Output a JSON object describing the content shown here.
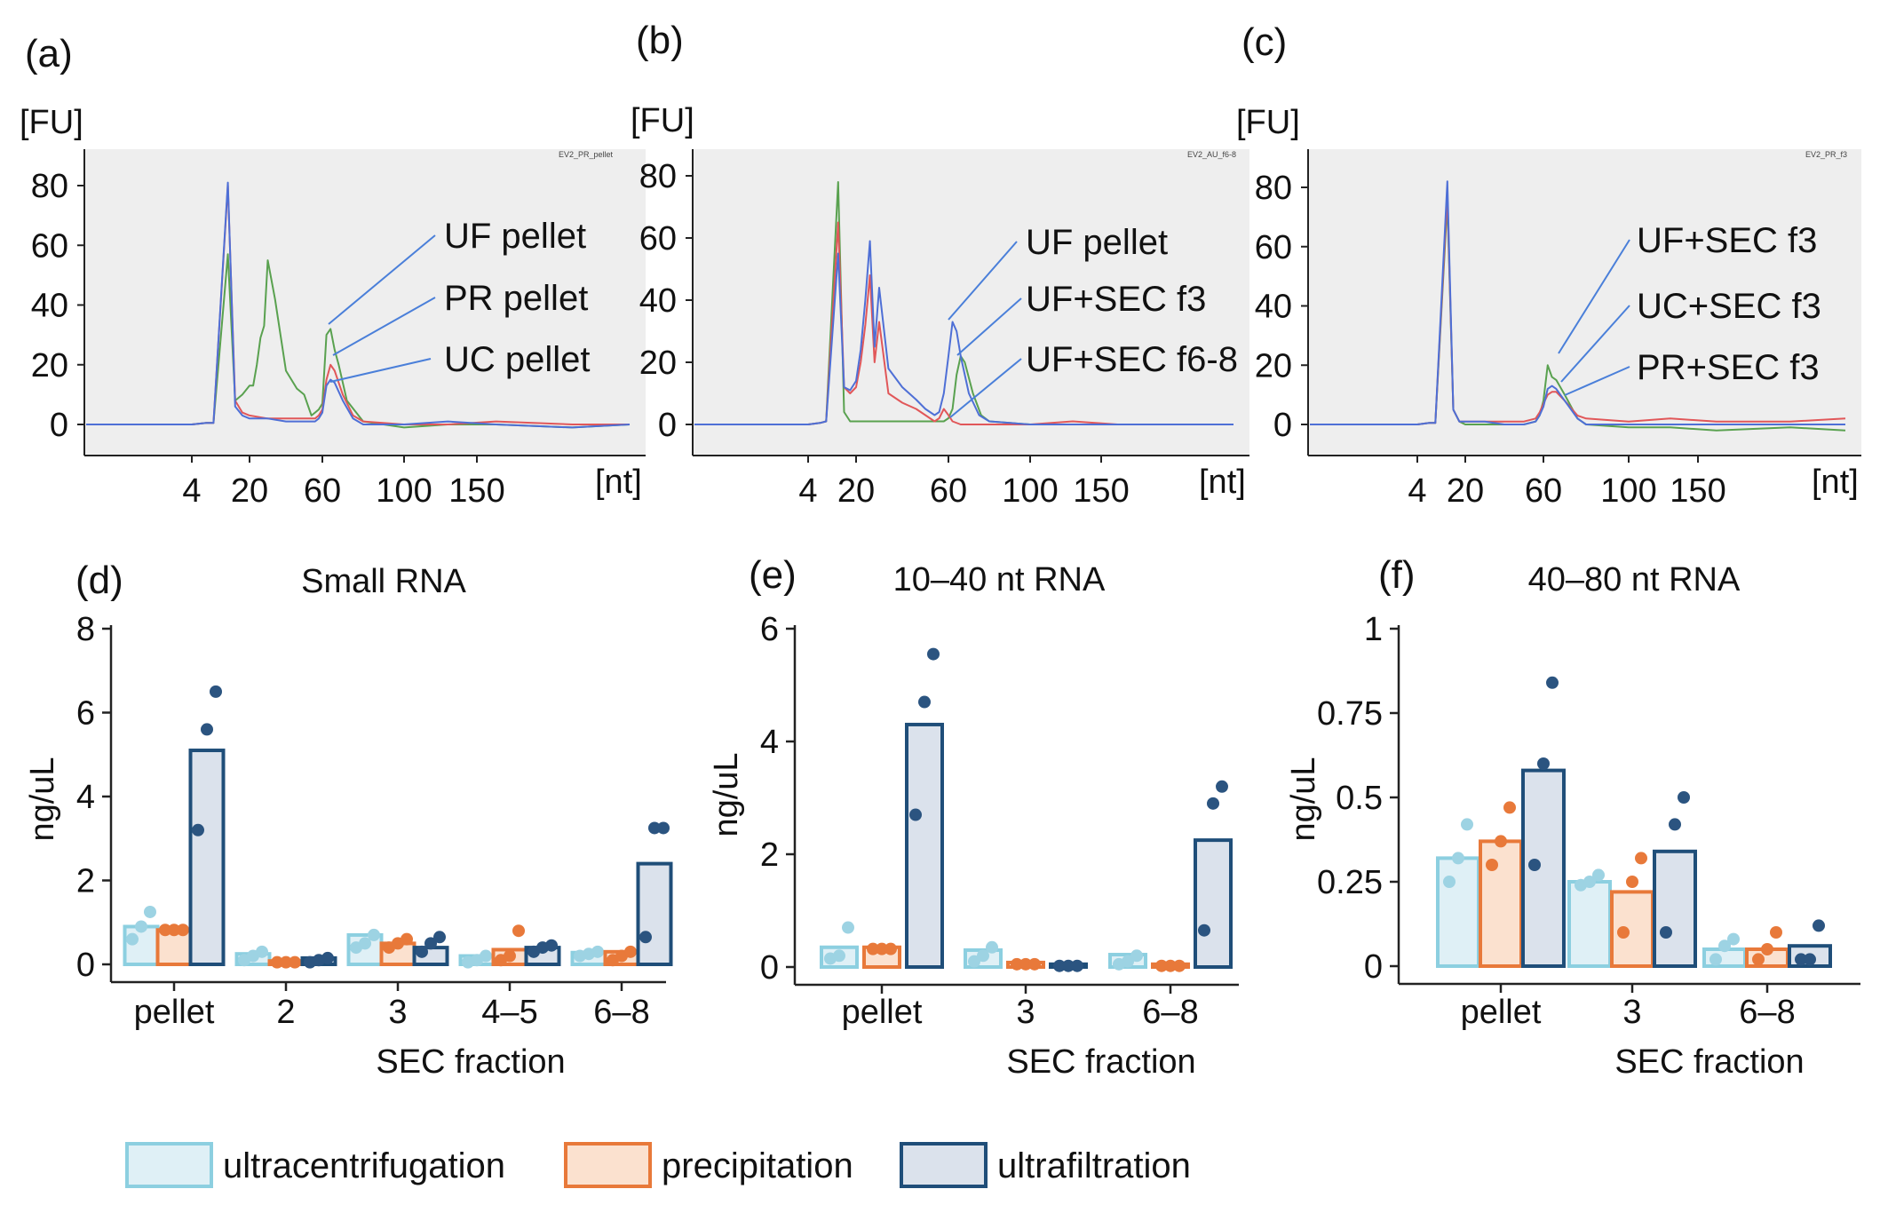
{
  "chart_data": [
    {
      "panel": "(a)",
      "type": "line",
      "title": "",
      "ylabel": "[FU]",
      "xlabel": "[nt]",
      "x_ticks": [
        "4",
        "20",
        "60",
        "100",
        "150"
      ],
      "y_ticks": [
        "0",
        "20",
        "40",
        "60",
        "80"
      ],
      "ylim": [
        -10,
        90
      ],
      "file_label": "EV2_PR_pellet",
      "annotations": [
        "UF pellet",
        "PR pellet",
        "UC pellet"
      ],
      "series": [
        {
          "name": "green",
          "color": "#59a14f",
          "x": [
            0,
            4,
            8,
            10,
            14,
            16,
            18,
            20,
            22,
            24,
            26,
            28,
            30,
            34,
            40,
            46,
            50,
            54,
            56,
            58,
            60,
            62,
            64,
            66,
            68,
            72,
            80,
            100,
            130,
            160,
            200,
            230
          ],
          "y": [
            0,
            0,
            0.5,
            0.5,
            57,
            8,
            10,
            13,
            13,
            20,
            29,
            33,
            55,
            42,
            18,
            12,
            10,
            3,
            4,
            5,
            7,
            30,
            32,
            25,
            20,
            8,
            1,
            -1,
            0,
            0,
            -1,
            0
          ]
        },
        {
          "name": "red",
          "color": "#e15759",
          "x": [
            0,
            4,
            8,
            10,
            14,
            16,
            18,
            20,
            30,
            40,
            50,
            56,
            58,
            60,
            62,
            64,
            66,
            70,
            75,
            80,
            100,
            130,
            160,
            200,
            230
          ],
          "y": [
            0,
            0,
            0.5,
            0.5,
            80,
            8,
            4,
            3,
            2,
            2,
            2,
            2,
            3,
            5,
            15,
            20,
            18,
            10,
            3,
            1,
            0,
            0,
            1,
            0,
            0
          ]
        },
        {
          "name": "blue",
          "color": "#4e6fd6",
          "x": [
            0,
            4,
            8,
            10,
            14,
            16,
            18,
            20,
            30,
            40,
            50,
            56,
            58,
            60,
            62,
            64,
            66,
            70,
            75,
            80,
            100,
            130,
            160,
            200,
            230
          ],
          "y": [
            0,
            0,
            0.5,
            0.5,
            81,
            6,
            3,
            2,
            2,
            1,
            1,
            1,
            2,
            4,
            13,
            15,
            14,
            8,
            2,
            0,
            0,
            1,
            0,
            -1,
            0
          ]
        }
      ]
    },
    {
      "panel": "(b)",
      "type": "line",
      "title": "",
      "ylabel": "[FU]",
      "xlabel": "[nt]",
      "x_ticks": [
        "4",
        "20",
        "60",
        "100",
        "150"
      ],
      "y_ticks": [
        "0",
        "20",
        "40",
        "60",
        "80"
      ],
      "ylim": [
        -10,
        90
      ],
      "file_label": "EV2_AU_f6-8",
      "annotations": [
        "UF pellet",
        "UF+SEC f3",
        "UF+SEC f6-8"
      ],
      "series": [
        {
          "name": "green",
          "color": "#59a14f",
          "x": [
            0,
            4,
            8,
            10,
            14,
            16,
            18,
            20,
            30,
            40,
            50,
            56,
            58,
            60,
            62,
            64,
            66,
            68,
            72,
            76,
            80,
            100,
            130,
            160,
            200,
            230
          ],
          "y": [
            0,
            0,
            0.5,
            1,
            78,
            4,
            1,
            1,
            1,
            1,
            1,
            1,
            1,
            2,
            5,
            16,
            22,
            20,
            10,
            3,
            1,
            0,
            0,
            0,
            0,
            0
          ]
        },
        {
          "name": "red",
          "color": "#e15759",
          "x": [
            0,
            4,
            8,
            10,
            14,
            16,
            18,
            20,
            22,
            24,
            26,
            28,
            30,
            34,
            40,
            46,
            50,
            54,
            56,
            58,
            60,
            62,
            66,
            70,
            80,
            100,
            130,
            160,
            200,
            230
          ],
          "y": [
            0,
            0,
            0.5,
            1,
            65,
            12,
            10,
            12,
            20,
            32,
            48,
            20,
            33,
            10,
            7,
            5,
            3,
            1,
            2,
            5,
            3,
            1,
            0,
            0,
            0,
            0,
            1,
            0,
            0,
            0
          ]
        },
        {
          "name": "blue",
          "color": "#4e6fd6",
          "x": [
            0,
            4,
            8,
            10,
            14,
            16,
            18,
            20,
            22,
            24,
            26,
            28,
            30,
            34,
            40,
            46,
            50,
            54,
            56,
            58,
            60,
            62,
            64,
            66,
            70,
            75,
            80,
            100,
            130,
            160,
            200,
            230
          ],
          "y": [
            0,
            0,
            0.5,
            1,
            55,
            12,
            11,
            14,
            24,
            40,
            59,
            25,
            44,
            18,
            12,
            8,
            5,
            3,
            4,
            10,
            22,
            33,
            30,
            22,
            10,
            3,
            1,
            0,
            0,
            0,
            0,
            0
          ]
        }
      ]
    },
    {
      "panel": "(c)",
      "type": "line",
      "title": "",
      "ylabel": "[FU]",
      "xlabel": "[nt]",
      "x_ticks": [
        "4",
        "20",
        "60",
        "100",
        "150"
      ],
      "y_ticks": [
        "0",
        "20",
        "40",
        "60",
        "80"
      ],
      "ylim": [
        -10,
        90
      ],
      "file_label": "EV2_PR_f3",
      "annotations": [
        "UF+SEC f3",
        "UC+SEC f3",
        "PR+SEC f3"
      ],
      "series": [
        {
          "name": "green",
          "color": "#59a14f",
          "x": [
            0,
            4,
            8,
            10,
            14,
            16,
            18,
            20,
            30,
            40,
            50,
            56,
            58,
            60,
            62,
            64,
            66,
            70,
            76,
            80,
            100,
            130,
            160,
            200,
            230
          ],
          "y": [
            0,
            0,
            0.5,
            0.5,
            75,
            5,
            1,
            0,
            0,
            0,
            0,
            1,
            3,
            8,
            20,
            16,
            15,
            10,
            2,
            0,
            -1,
            -1,
            -2,
            -1,
            -2
          ]
        },
        {
          "name": "red",
          "color": "#e15759",
          "x": [
            0,
            4,
            8,
            10,
            14,
            16,
            18,
            20,
            30,
            40,
            50,
            56,
            58,
            60,
            62,
            64,
            66,
            70,
            76,
            80,
            100,
            130,
            160,
            200,
            230
          ],
          "y": [
            0,
            0,
            0.5,
            0.5,
            78,
            5,
            1,
            1,
            1,
            1,
            1,
            2,
            4,
            7,
            10,
            11,
            11,
            8,
            3,
            2,
            1,
            2,
            1,
            1,
            2
          ]
        },
        {
          "name": "blue",
          "color": "#4e6fd6",
          "x": [
            0,
            4,
            8,
            10,
            14,
            16,
            18,
            20,
            30,
            40,
            50,
            56,
            58,
            60,
            62,
            64,
            66,
            70,
            76,
            80,
            100,
            130,
            160,
            200,
            230
          ],
          "y": [
            0,
            0,
            0.5,
            0.5,
            82,
            5,
            1,
            1,
            1,
            0,
            0,
            1,
            3,
            6,
            12,
            13,
            12,
            8,
            2,
            0,
            0,
            0,
            0,
            0,
            0
          ]
        }
      ]
    },
    {
      "panel": "(d)",
      "type": "bar",
      "title": "Small RNA",
      "xlabel": "SEC fraction",
      "ylabel": "ng/uL",
      "categories": [
        "pellet",
        "2",
        "3",
        "4–5",
        "6–8"
      ],
      "y_ticks": [
        "0",
        "2",
        "4",
        "6",
        "8"
      ],
      "ylim": [
        0,
        8
      ],
      "series": [
        {
          "name": "ultracentrifugation",
          "values": [
            0.9,
            0.25,
            0.7,
            0.2,
            0.28
          ],
          "points": [
            [
              0.6,
              0.9,
              1.25
            ],
            [
              0.1,
              0.2,
              0.3
            ],
            [
              0.4,
              0.5,
              0.7
            ],
            [
              0.05,
              0.1,
              0.2
            ],
            [
              0.2,
              0.25,
              0.3
            ]
          ]
        },
        {
          "name": "precipitation",
          "values": [
            0.82,
            0.08,
            0.5,
            0.35,
            0.3
          ],
          "points": [
            [
              0.82,
              0.82,
              0.82
            ],
            [
              0.05,
              0.05,
              0.05
            ],
            [
              0.4,
              0.5,
              0.6
            ],
            [
              0.1,
              0.2,
              0.8
            ],
            [
              0.1,
              0.2,
              0.3
            ]
          ]
        },
        {
          "name": "ultrafiltration",
          "values": [
            5.1,
            0.15,
            0.4,
            0.4,
            2.4
          ],
          "points": [
            [
              3.2,
              5.6,
              6.5
            ],
            [
              0.05,
              0.1,
              0.15
            ],
            [
              0.3,
              0.5,
              0.65
            ],
            [
              0.3,
              0.4,
              0.45
            ],
            [
              0.65,
              3.25,
              3.25
            ]
          ]
        }
      ]
    },
    {
      "panel": "(e)",
      "type": "bar",
      "title": "10–40 nt RNA",
      "xlabel": "SEC fraction",
      "ylabel": "ng/uL",
      "categories": [
        "pellet",
        "3",
        "6–8"
      ],
      "y_ticks": [
        "0",
        "2",
        "4",
        "6"
      ],
      "ylim": [
        0,
        6
      ],
      "series": [
        {
          "name": "ultracentrifugation",
          "values": [
            0.35,
            0.3,
            0.22
          ],
          "points": [
            [
              0.15,
              0.2,
              0.7
            ],
            [
              0.1,
              0.2,
              0.35
            ],
            [
              0.05,
              0.1,
              0.2
            ]
          ]
        },
        {
          "name": "precipitation",
          "values": [
            0.35,
            0.08,
            0.05
          ],
          "points": [
            [
              0.32,
              0.32,
              0.32
            ],
            [
              0.05,
              0.05,
              0.05
            ],
            [
              0.02,
              0.02,
              0.02
            ]
          ]
        },
        {
          "name": "ultrafiltration",
          "values": [
            4.3,
            0.05,
            2.25
          ],
          "points": [
            [
              2.7,
              4.7,
              5.55
            ],
            [
              0.02,
              0.02,
              0.02
            ],
            [
              0.65,
              2.9,
              3.2
            ]
          ]
        }
      ]
    },
    {
      "panel": "(f)",
      "type": "bar",
      "title": "40–80 nt RNA",
      "xlabel": "SEC fraction",
      "ylabel": "ng/uL",
      "categories": [
        "pellet",
        "3",
        "6–8"
      ],
      "y_ticks": [
        "0",
        "0.25",
        "0.5",
        "0.75",
        "1"
      ],
      "ylim": [
        0,
        1
      ],
      "series": [
        {
          "name": "ultracentrifugation",
          "values": [
            0.32,
            0.25,
            0.05
          ],
          "points": [
            [
              0.25,
              0.32,
              0.42
            ],
            [
              0.24,
              0.25,
              0.27
            ],
            [
              0.02,
              0.06,
              0.08
            ]
          ]
        },
        {
          "name": "precipitation",
          "values": [
            0.37,
            0.22,
            0.05
          ],
          "points": [
            [
              0.3,
              0.37,
              0.47
            ],
            [
              0.1,
              0.25,
              0.32
            ],
            [
              0.02,
              0.05,
              0.1
            ]
          ]
        },
        {
          "name": "ultrafiltration",
          "values": [
            0.58,
            0.34,
            0.06
          ],
          "points": [
            [
              0.3,
              0.6,
              0.84
            ],
            [
              0.1,
              0.42,
              0.5
            ],
            [
              0.02,
              0.02,
              0.12
            ]
          ]
        }
      ]
    }
  ],
  "legend": [
    {
      "label": "ultracentrifugation",
      "fill": "#dff0f6",
      "stroke": "#8ccfe0",
      "dot": "#9dd3e3"
    },
    {
      "label": "precipitation",
      "fill": "#fbe1cf",
      "stroke": "#e8793a",
      "dot": "#e8793a"
    },
    {
      "label": "ultrafiltration",
      "fill": "#dbe2ec",
      "stroke": "#1f4e79",
      "dot": "#2b5480"
    }
  ]
}
